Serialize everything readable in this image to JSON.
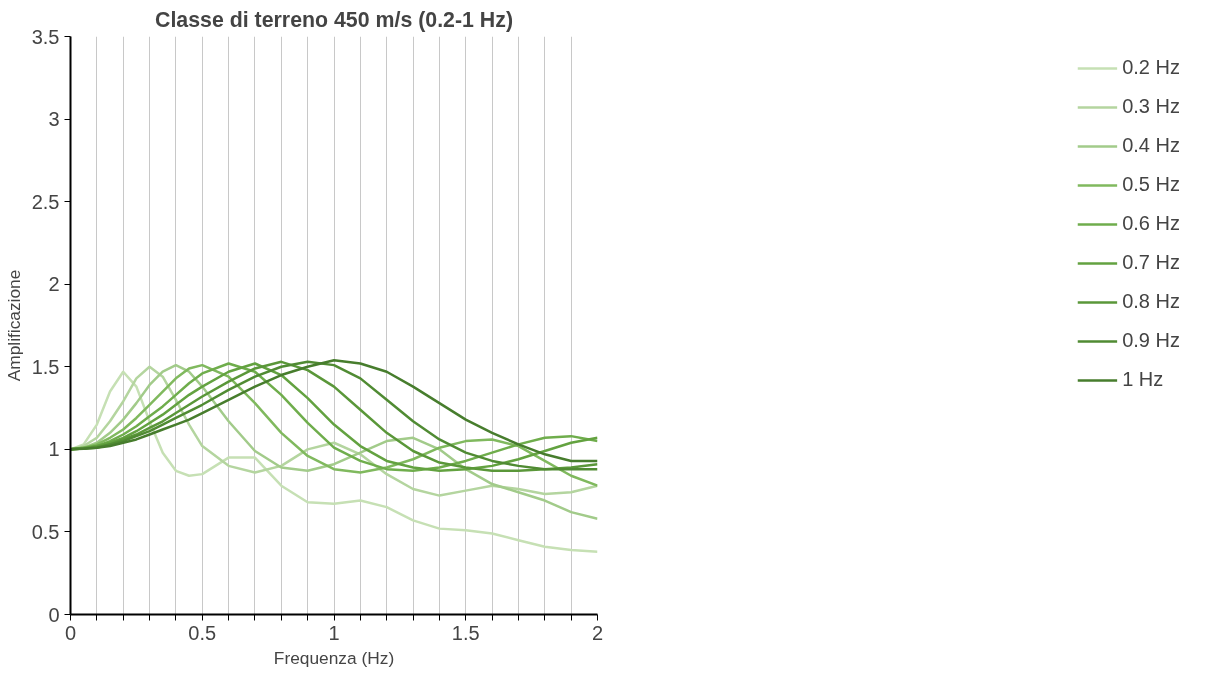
{
  "chart_data": {
    "type": "line",
    "title": "Classe di terreno 450 m/s (0.2-1 Hz)",
    "xlabel": "Frequenza (Hz)",
    "ylabel": "Amplificazione",
    "x": [
      0,
      0.05,
      0.1,
      0.15,
      0.2,
      0.25,
      0.3,
      0.35,
      0.4,
      0.45,
      0.5,
      0.6,
      0.7,
      0.8,
      0.9,
      1.0,
      1.1,
      1.2,
      1.3,
      1.4,
      1.5,
      1.6,
      1.7,
      1.8,
      1.9,
      2.0
    ],
    "xlim": [
      0,
      2
    ],
    "ylim": [
      0,
      3.5
    ],
    "xticks": [
      0,
      {
        "value": 0.1,
        "label": null
      },
      {
        "value": 0.2,
        "label": null
      },
      {
        "value": 0.3,
        "label": null
      },
      {
        "value": 0.4,
        "label": null
      },
      0.5,
      {
        "value": 0.6,
        "label": null
      },
      {
        "value": 0.7,
        "label": null
      },
      {
        "value": 0.8,
        "label": null
      },
      {
        "value": 0.9,
        "label": null
      },
      1,
      {
        "value": 1.1,
        "label": null
      },
      {
        "value": 1.2,
        "label": null
      },
      {
        "value": 1.3,
        "label": null
      },
      {
        "value": 1.4,
        "label": null
      },
      1.5,
      {
        "value": 1.6,
        "label": null
      },
      {
        "value": 1.7,
        "label": null
      },
      {
        "value": 1.8,
        "label": null
      },
      {
        "value": 1.9,
        "label": null
      },
      2
    ],
    "yticks": [
      0,
      0.5,
      1,
      1.5,
      2,
      2.5,
      3,
      3.5
    ],
    "grid": "x",
    "legend": "right",
    "marker": "none",
    "line_style": "solid",
    "series": [
      {
        "name": "0.2 Hz",
        "color": "#c6e0b4",
        "values": [
          1,
          1.03,
          1.15,
          1.35,
          1.47,
          1.38,
          1.17,
          0.98,
          0.87,
          0.84,
          0.85,
          0.95,
          0.95,
          0.78,
          0.68,
          0.67,
          0.69,
          0.65,
          0.57,
          0.52,
          0.51,
          0.49,
          0.45,
          0.41,
          0.39,
          0.38
        ]
      },
      {
        "name": "0.3 Hz",
        "color": "#b4d59f",
        "values": [
          1,
          1.02,
          1.07,
          1.17,
          1.29,
          1.43,
          1.5,
          1.44,
          1.3,
          1.15,
          1.02,
          0.9,
          0.86,
          0.9,
          1.0,
          1.04,
          0.97,
          0.85,
          0.76,
          0.72,
          0.75,
          0.78,
          0.76,
          0.73,
          0.74,
          0.78
        ]
      },
      {
        "name": "0.4 Hz",
        "color": "#a2cb8a",
        "values": [
          1,
          1.01,
          1.04,
          1.1,
          1.18,
          1.28,
          1.39,
          1.47,
          1.51,
          1.47,
          1.38,
          1.17,
          0.99,
          0.89,
          0.87,
          0.91,
          0.98,
          1.05,
          1.07,
          1.0,
          0.88,
          0.79,
          0.74,
          0.69,
          0.62,
          0.58
        ]
      },
      {
        "name": "0.5 Hz",
        "color": "#80b95e",
        "values": [
          1,
          1.01,
          1.03,
          1.07,
          1.12,
          1.19,
          1.27,
          1.35,
          1.43,
          1.49,
          1.51,
          1.44,
          1.28,
          1.1,
          0.96,
          0.88,
          0.86,
          0.89,
          0.94,
          1.01,
          1.05,
          1.06,
          1.02,
          0.93,
          0.84,
          0.78
        ]
      },
      {
        "name": "0.6 Hz",
        "color": "#6fad4c",
        "values": [
          1,
          1.01,
          1.02,
          1.05,
          1.09,
          1.14,
          1.2,
          1.26,
          1.33,
          1.4,
          1.46,
          1.52,
          1.47,
          1.33,
          1.16,
          1.01,
          0.93,
          0.88,
          0.87,
          0.89,
          0.93,
          0.98,
          1.03,
          1.07,
          1.08,
          1.05
        ]
      },
      {
        "name": "0.7 Hz",
        "color": "#63a240",
        "values": [
          1,
          1.005,
          1.02,
          1.04,
          1.07,
          1.11,
          1.16,
          1.21,
          1.27,
          1.33,
          1.38,
          1.47,
          1.52,
          1.45,
          1.31,
          1.15,
          1.02,
          0.93,
          0.89,
          0.87,
          0.88,
          0.9,
          0.94,
          0.99,
          1.04,
          1.07
        ]
      },
      {
        "name": "0.8 Hz",
        "color": "#5a9739",
        "values": [
          1,
          1.005,
          1.015,
          1.03,
          1.06,
          1.09,
          1.13,
          1.17,
          1.22,
          1.27,
          1.32,
          1.41,
          1.49,
          1.53,
          1.48,
          1.38,
          1.24,
          1.1,
          0.99,
          0.92,
          0.89,
          0.87,
          0.87,
          0.88,
          0.89,
          0.91
        ]
      },
      {
        "name": "0.9 Hz",
        "color": "#508b33",
        "values": [
          1,
          1.005,
          1.01,
          1.03,
          1.05,
          1.08,
          1.11,
          1.15,
          1.19,
          1.23,
          1.27,
          1.36,
          1.44,
          1.5,
          1.53,
          1.51,
          1.43,
          1.3,
          1.17,
          1.06,
          0.98,
          0.93,
          0.9,
          0.88,
          0.88,
          0.88
        ]
      },
      {
        "name": "1 Hz",
        "color": "#477d2d",
        "values": [
          1,
          1.003,
          1.01,
          1.02,
          1.04,
          1.06,
          1.09,
          1.12,
          1.15,
          1.18,
          1.22,
          1.3,
          1.38,
          1.45,
          1.5,
          1.54,
          1.52,
          1.47,
          1.38,
          1.28,
          1.18,
          1.1,
          1.03,
          0.97,
          0.93,
          0.93
        ]
      }
    ]
  }
}
